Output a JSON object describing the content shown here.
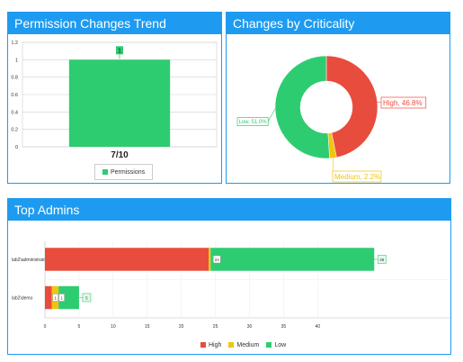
{
  "panels": {
    "trend_title": "Permission Changes Trend",
    "criticality_title": "Changes by Criticality",
    "admins_title": "Top Admins"
  },
  "colors": {
    "high": "#e84c3d",
    "medium": "#f1c40f",
    "low": "#2ecc71",
    "header": "#1e9bf0"
  },
  "chart_data": [
    {
      "type": "bar",
      "categories": [
        "7/10"
      ],
      "series": [
        {
          "name": "Permissions",
          "values": [
            1
          ]
        }
      ],
      "ylim": [
        0,
        1.2
      ],
      "yticks": [
        "0",
        "0.2",
        "0.4",
        "0.6",
        "0.8",
        "1",
        "1.2"
      ],
      "data_labels": [
        "1"
      ],
      "legend": "bottom",
      "grid": true
    },
    {
      "type": "pie",
      "donut": true,
      "slices": [
        {
          "name": "High",
          "value": 46.8,
          "label": "High, 46.8%",
          "color": "#e84c3d"
        },
        {
          "name": "Medium",
          "value": 2.2,
          "label": "Medium, 2.2%",
          "color": "#f1c40f"
        },
        {
          "name": "Low",
          "value": 51.0,
          "label": "Low, 51.0%",
          "color": "#2ecc71"
        }
      ]
    },
    {
      "type": "bar",
      "orientation": "horizontal",
      "stacked": true,
      "categories": [
        "lab2\\administrator",
        "lab2\\demo"
      ],
      "series": [
        {
          "name": "High",
          "values": [
            24,
            1
          ],
          "color": "#e84c3d"
        },
        {
          "name": "Medium",
          "values": [
            0.3,
            1
          ],
          "color": "#f1c40f"
        },
        {
          "name": "Low",
          "values": [
            24,
            3
          ],
          "color": "#2ecc71"
        }
      ],
      "data_labels": [
        {
          "row": 0,
          "segments": [
            "24",
            "48"
          ]
        },
        {
          "row": 1,
          "segments": [
            "1",
            "1",
            "5"
          ]
        }
      ],
      "xlim": [
        0,
        60
      ],
      "xticks": [
        "0",
        "5",
        "10",
        "15",
        "20",
        "25",
        "30",
        "35",
        "40"
      ],
      "legend": "bottom",
      "grid": true
    }
  ]
}
